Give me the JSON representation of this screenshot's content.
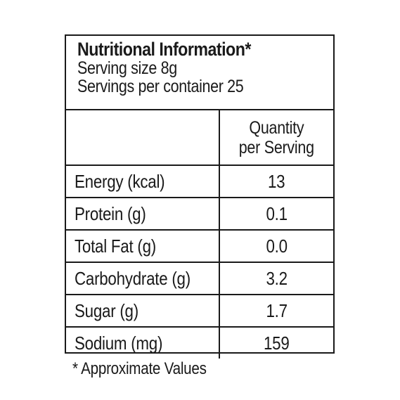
{
  "label": {
    "title": "Nutritional Information*",
    "serving_size": "Serving size 8g",
    "servings_per_container": "Servings per container 25",
    "column_header": [
      "Quantity",
      "per Serving"
    ],
    "rows": [
      {
        "label": "Energy (kcal)",
        "value": "13"
      },
      {
        "label": "Protein (g)",
        "value": "0.1"
      },
      {
        "label": "Total Fat (g)",
        "value": "0.0"
      },
      {
        "label": "Carbohydrate (g)",
        "value": "3.2"
      },
      {
        "label": "Sugar (g)",
        "value": "1.7"
      },
      {
        "label": "Sodium (mg)",
        "value": "159"
      }
    ],
    "footnote": "* Approximate Values"
  }
}
